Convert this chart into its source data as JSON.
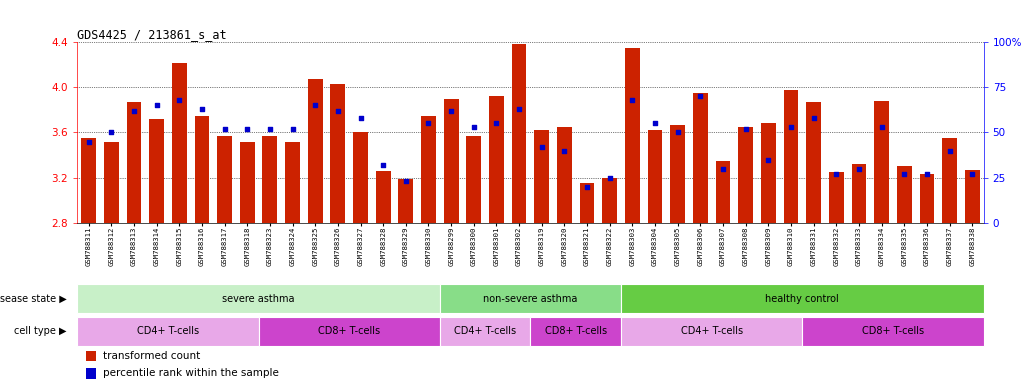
{
  "title": "GDS4425 / 213861_s_at",
  "samples": [
    "GSM788311",
    "GSM788312",
    "GSM788313",
    "GSM788314",
    "GSM788315",
    "GSM788316",
    "GSM788317",
    "GSM788318",
    "GSM788323",
    "GSM788324",
    "GSM788325",
    "GSM788326",
    "GSM788327",
    "GSM788328",
    "GSM788329",
    "GSM788330",
    "GSM788299",
    "GSM788300",
    "GSM788301",
    "GSM788302",
    "GSM788319",
    "GSM788320",
    "GSM788321",
    "GSM788322",
    "GSM788303",
    "GSM788304",
    "GSM788305",
    "GSM788306",
    "GSM788307",
    "GSM788308",
    "GSM788309",
    "GSM788310",
    "GSM788331",
    "GSM788332",
    "GSM788333",
    "GSM788334",
    "GSM788335",
    "GSM788336",
    "GSM788337",
    "GSM788338"
  ],
  "transformed_count": [
    3.55,
    3.52,
    3.87,
    3.72,
    4.22,
    3.75,
    3.57,
    3.52,
    3.57,
    3.52,
    4.07,
    4.03,
    3.6,
    3.26,
    3.19,
    3.75,
    3.9,
    3.57,
    3.92,
    4.38,
    3.62,
    3.65,
    3.15,
    3.2,
    4.35,
    3.62,
    3.67,
    3.95,
    3.35,
    3.65,
    3.68,
    3.98,
    3.87,
    3.25,
    3.32,
    3.88,
    3.3,
    3.23,
    3.55,
    3.27
  ],
  "percentile_rank": [
    45,
    50,
    62,
    65,
    68,
    63,
    52,
    52,
    52,
    52,
    65,
    62,
    58,
    32,
    23,
    55,
    62,
    53,
    55,
    63,
    42,
    40,
    20,
    25,
    68,
    55,
    50,
    70,
    30,
    52,
    35,
    53,
    58,
    27,
    30,
    53,
    27,
    27,
    40,
    27
  ],
  "bar_color": "#cc2200",
  "dot_color": "#0000cc",
  "ylim": [
    2.8,
    4.4
  ],
  "yticks": [
    2.8,
    3.2,
    3.6,
    4.0,
    4.4
  ],
  "right_ylim": [
    0,
    100
  ],
  "right_yticks": [
    0,
    25,
    50,
    75,
    100
  ],
  "disease_state_groups": [
    {
      "label": "severe asthma",
      "start": 0,
      "end": 15,
      "color": "#c8f0c8"
    },
    {
      "label": "non-severe asthma",
      "start": 16,
      "end": 23,
      "color": "#88dd88"
    },
    {
      "label": "healthy control",
      "start": 24,
      "end": 39,
      "color": "#66cc44"
    }
  ],
  "cell_type_groups": [
    {
      "label": "CD4+ T-cells",
      "start": 0,
      "end": 7,
      "color": "#e8a8e8"
    },
    {
      "label": "CD8+ T-cells",
      "start": 8,
      "end": 15,
      "color": "#cc44cc"
    },
    {
      "label": "CD4+ T-cells",
      "start": 16,
      "end": 19,
      "color": "#e8a8e8"
    },
    {
      "label": "CD8+ T-cells",
      "start": 20,
      "end": 23,
      "color": "#cc44cc"
    },
    {
      "label": "CD4+ T-cells",
      "start": 24,
      "end": 31,
      "color": "#e8a8e8"
    },
    {
      "label": "CD8+ T-cells",
      "start": 32,
      "end": 39,
      "color": "#cc44cc"
    }
  ]
}
